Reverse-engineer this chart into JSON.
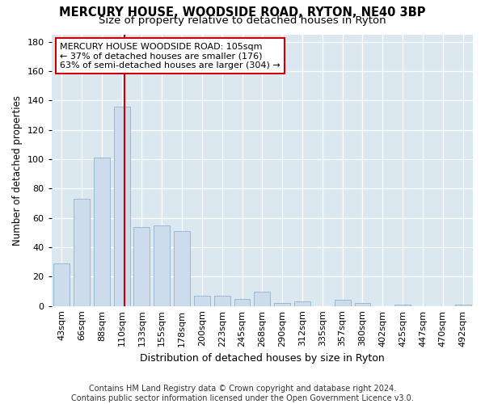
{
  "title": "MERCURY HOUSE, WOODSIDE ROAD, RYTON, NE40 3BP",
  "subtitle": "Size of property relative to detached houses in Ryton",
  "xlabel": "Distribution of detached houses by size in Ryton",
  "ylabel": "Number of detached properties",
  "footer_line1": "Contains HM Land Registry data © Crown copyright and database right 2024.",
  "footer_line2": "Contains public sector information licensed under the Open Government Licence v3.0.",
  "categories": [
    "43sqm",
    "66sqm",
    "88sqm",
    "110sqm",
    "133sqm",
    "155sqm",
    "178sqm",
    "200sqm",
    "223sqm",
    "245sqm",
    "268sqm",
    "290sqm",
    "312sqm",
    "335sqm",
    "357sqm",
    "380sqm",
    "402sqm",
    "425sqm",
    "447sqm",
    "470sqm",
    "492sqm"
  ],
  "values": [
    29,
    73,
    101,
    136,
    54,
    55,
    51,
    7,
    7,
    5,
    10,
    2,
    3,
    0,
    4,
    2,
    0,
    1,
    0,
    0,
    1
  ],
  "bar_color": "#ccdcec",
  "bar_edge_color": "#9ab8d0",
  "vline_color": "#cc0000",
  "vline_x": 3.15,
  "annotation_text": "MERCURY HOUSE WOODSIDE ROAD: 105sqm\n← 37% of detached houses are smaller (176)\n63% of semi-detached houses are larger (304) →",
  "annotation_box_facecolor": "#ffffff",
  "annotation_box_edgecolor": "#cc0000",
  "ylim": [
    0,
    185
  ],
  "yticks": [
    0,
    20,
    40,
    60,
    80,
    100,
    120,
    140,
    160,
    180
  ],
  "background_color": "#dce8f0",
  "title_fontsize": 10.5,
  "subtitle_fontsize": 9.5,
  "tick_fontsize": 8,
  "ylabel_fontsize": 8.5,
  "xlabel_fontsize": 9,
  "annotation_fontsize": 8,
  "footer_fontsize": 7
}
